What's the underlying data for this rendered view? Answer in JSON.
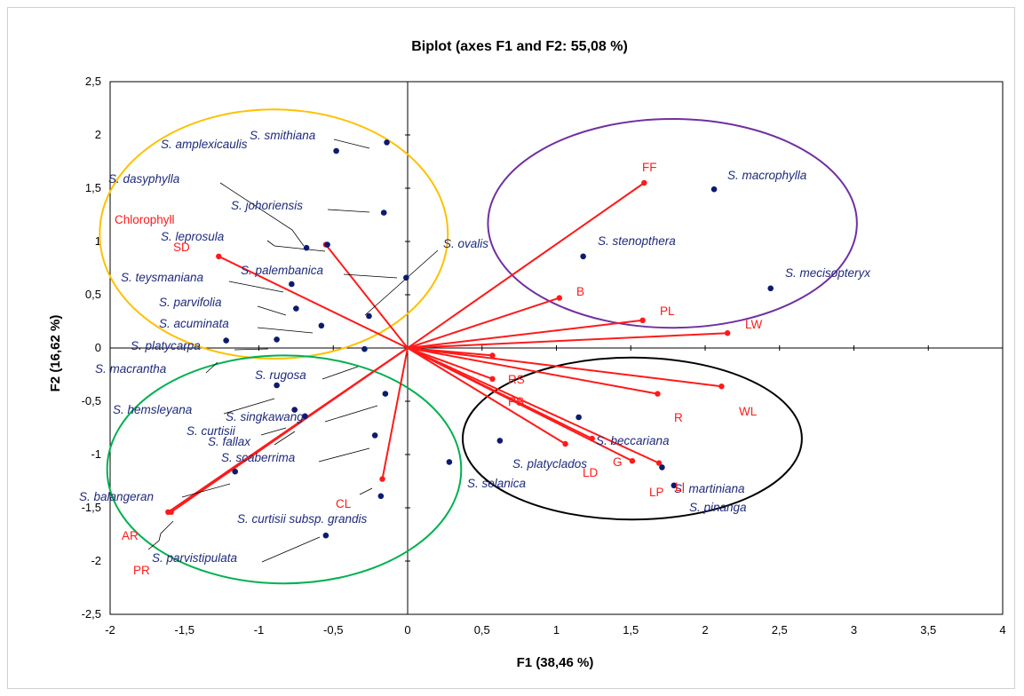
{
  "chart_data": {
    "type": "scatter",
    "title": "Biplot (axes F1 and F2: 55,08 %)",
    "xlabel": "F1 (38,46 %)",
    "ylabel": "F2 (16,62 %)",
    "xlim": [
      -2,
      4
    ],
    "ylim": [
      -2.5,
      2.5
    ],
    "x_ticks": [
      "-2",
      "-1,5",
      "-1",
      "-0,5",
      "0",
      "0,5",
      "1",
      "1,5",
      "2",
      "2,5",
      "3",
      "3,5",
      "4"
    ],
    "y_ticks": [
      "2,5",
      "2",
      "1,5",
      "1",
      "0,5",
      "0",
      "-0,5",
      "-1",
      "-1,5",
      "-2",
      "-2,5"
    ],
    "colors": {
      "observations": "#0d1b6e",
      "variables": "#ff1a1a",
      "yellow_ellipse": "#ffc000",
      "purple_ellipse": "#7030a0",
      "green_ellipse": "#00b050",
      "black_ellipse": "#000000"
    },
    "observations": [
      {
        "label": "S. smithiana",
        "x": -0.14,
        "y": 1.93
      },
      {
        "label": "S. amplexicaulis",
        "x": -0.48,
        "y": 1.85
      },
      {
        "label": "S. dasyphylla",
        "x": -0.68,
        "y": 0.94
      },
      {
        "label": "S. johoriensis",
        "x": -0.16,
        "y": 1.27
      },
      {
        "label": "S. leprosula",
        "x": -0.54,
        "y": 0.97
      },
      {
        "label": "S. palembanica",
        "x": -0.01,
        "y": 0.66
      },
      {
        "label": "S. ovalis",
        "x": -0.26,
        "y": 0.3
      },
      {
        "label": "S. teysmaniana",
        "x": -0.78,
        "y": 0.6
      },
      {
        "label": "S. parvifolia",
        "x": -0.75,
        "y": 0.37
      },
      {
        "label": "S. acuminata",
        "x": -0.58,
        "y": 0.21
      },
      {
        "label": "S. platycarpa",
        "x": -0.88,
        "y": 0.08
      },
      {
        "label": "S. macrantha",
        "x": -1.22,
        "y": 0.07
      },
      {
        "label": "S. rugosa",
        "x": -0.29,
        "y": -0.01
      },
      {
        "label": "S. hemsleyana",
        "x": -0.88,
        "y": -0.35
      },
      {
        "label": "S. singkawang",
        "x": -0.15,
        "y": -0.43
      },
      {
        "label": "S. curtisii",
        "x": -0.76,
        "y": -0.58
      },
      {
        "label": "S. fallax",
        "x": -0.69,
        "y": -0.64
      },
      {
        "label": "S. scaberrima",
        "x": -0.22,
        "y": -0.82
      },
      {
        "label": "S. balangeran",
        "x": -1.16,
        "y": -1.16
      },
      {
        "label": "S. curtisii subsp. grandis",
        "x": -0.18,
        "y": -1.39
      },
      {
        "label": "S. parvistipulata",
        "x": -0.55,
        "y": -1.76
      },
      {
        "label": "S. macrophylla",
        "x": 2.06,
        "y": 1.49
      },
      {
        "label": "S. stenopthera",
        "x": 1.18,
        "y": 0.86
      },
      {
        "label": "S. mecisopteryx",
        "x": 2.44,
        "y": 0.56
      },
      {
        "label": "S. beccariana",
        "x": 1.15,
        "y": -0.65
      },
      {
        "label": "S. platyclados",
        "x": 0.62,
        "y": -0.87
      },
      {
        "label": "S. selanica",
        "x": 0.28,
        "y": -1.07
      },
      {
        "label": "S. martiniana",
        "x": 1.71,
        "y": -1.12
      },
      {
        "label": "S. pinanga",
        "x": 1.79,
        "y": -1.29
      }
    ],
    "variables": [
      {
        "label": "FF",
        "x": 1.59,
        "y": 1.55
      },
      {
        "label": "Chlorophyll",
        "x": -0.55,
        "y": 0.97
      },
      {
        "label": "SD",
        "x": -1.27,
        "y": 0.86
      },
      {
        "label": "B",
        "x": 1.02,
        "y": 0.47
      },
      {
        "label": "PL",
        "x": 1.58,
        "y": 0.26
      },
      {
        "label": "LW",
        "x": 2.15,
        "y": 0.14
      },
      {
        "label": "RS",
        "x": 0.57,
        "y": -0.07
      },
      {
        "label": "PS",
        "x": 0.57,
        "y": -0.29
      },
      {
        "label": "R",
        "x": 1.68,
        "y": -0.43
      },
      {
        "label": "WL",
        "x": 2.11,
        "y": -0.36
      },
      {
        "label": "G",
        "x": 1.24,
        "y": -0.85
      },
      {
        "label": "LD",
        "x": 1.06,
        "y": -0.9
      },
      {
        "label": "LP",
        "x": 1.51,
        "y": -1.06
      },
      {
        "label": "LI",
        "x": 1.69,
        "y": -1.08
      },
      {
        "label": "CL",
        "x": -0.17,
        "y": -1.23
      },
      {
        "label": "AR",
        "x": -1.61,
        "y": -1.54
      },
      {
        "label": "PR",
        "x": -1.59,
        "y": -1.54
      }
    ]
  }
}
